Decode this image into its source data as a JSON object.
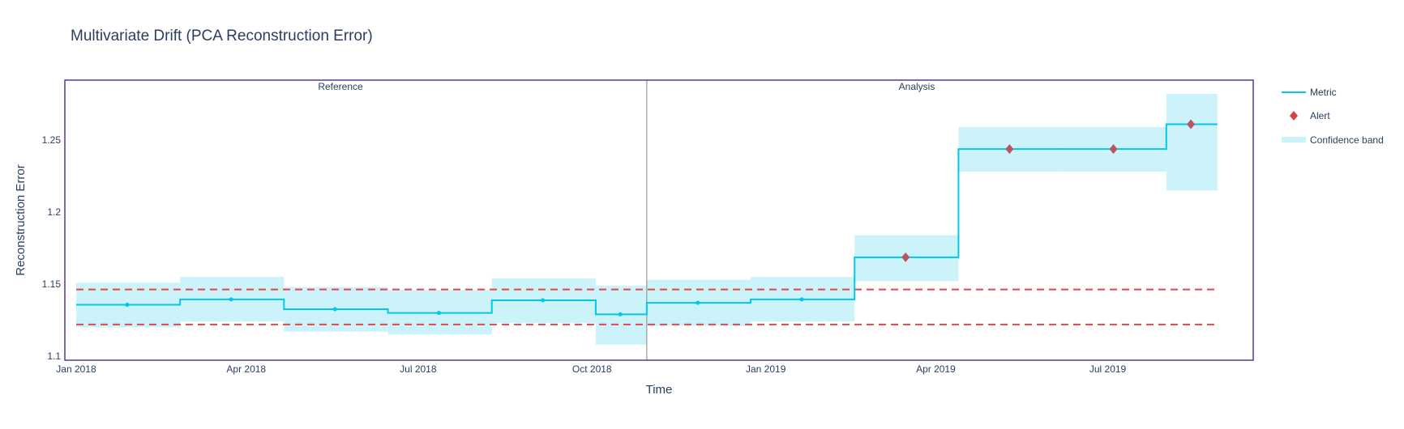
{
  "chart_data": {
    "type": "line",
    "title": "Multivariate Drift (PCA Reconstruction Error)",
    "xlabel": "Time",
    "ylabel": "Reconstruction Error",
    "xlim": [
      "2017-12-26",
      "2019-09-16"
    ],
    "ylim": [
      1.0972,
      1.2916
    ],
    "grid": false,
    "legend_placement": "right",
    "x_ticks": [
      {
        "date": "2018-01-01",
        "label": "Jan 2018"
      },
      {
        "date": "2018-04-01",
        "label": "Apr 2018"
      },
      {
        "date": "2018-07-01",
        "label": "Jul 2018"
      },
      {
        "date": "2018-10-01",
        "label": "Oct 2018"
      },
      {
        "date": "2019-01-01",
        "label": "Jan 2019"
      },
      {
        "date": "2019-04-01",
        "label": "Apr 2019"
      },
      {
        "date": "2019-07-01",
        "label": "Jul 2019"
      }
    ],
    "y_ticks": [
      {
        "value": 1.1,
        "label": "1.1"
      },
      {
        "value": 1.15,
        "label": "1.15"
      },
      {
        "value": 1.2,
        "label": "1.2"
      },
      {
        "value": 1.25,
        "label": "1.25"
      }
    ],
    "period_labels": {
      "reference": "Reference",
      "analysis": "Analysis"
    },
    "period_split": "2018-10-30",
    "thresholds": {
      "upper": 1.1463,
      "lower": 1.122
    },
    "legend": {
      "metric": "Metric",
      "alert": "Alert",
      "band": "Confidence band"
    },
    "colors": {
      "metric": "#00c8e5",
      "band": "#cdf3fa",
      "alert": "#d0474a",
      "alert_fill": "#b85560",
      "threshold": "#e0474c",
      "border": "#3d1a8e",
      "divider": "#a0a0a0"
    },
    "chunks": [
      {
        "start": "2018-01-01",
        "end": "2018-02-25",
        "value": 1.1357,
        "upper": 1.151,
        "lower": 1.12,
        "alert": false
      },
      {
        "start": "2018-02-25",
        "end": "2018-04-21",
        "value": 1.1394,
        "upper": 1.155,
        "lower": 1.124,
        "alert": false
      },
      {
        "start": "2018-04-21",
        "end": "2018-06-15",
        "value": 1.1326,
        "upper": 1.148,
        "lower": 1.117,
        "alert": false
      },
      {
        "start": "2018-06-15",
        "end": "2018-08-09",
        "value": 1.13,
        "upper": 1.146,
        "lower": 1.115,
        "alert": false
      },
      {
        "start": "2018-08-09",
        "end": "2018-10-03",
        "value": 1.1388,
        "upper": 1.154,
        "lower": 1.123,
        "alert": false
      },
      {
        "start": "2018-10-03",
        "end": "2018-10-30",
        "value": 1.129,
        "upper": 1.149,
        "lower": 1.108,
        "alert": false
      },
      {
        "start": "2018-10-30",
        "end": "2018-12-24",
        "value": 1.137,
        "upper": 1.153,
        "lower": 1.121,
        "alert": false
      },
      {
        "start": "2018-12-24",
        "end": "2019-02-17",
        "value": 1.1394,
        "upper": 1.155,
        "lower": 1.124,
        "alert": false
      },
      {
        "start": "2019-02-17",
        "end": "2019-04-13",
        "value": 1.1686,
        "upper": 1.184,
        "lower": 1.152,
        "alert": true
      },
      {
        "start": "2019-04-13",
        "end": "2019-06-07",
        "value": 1.2438,
        "upper": 1.259,
        "lower": 1.228,
        "alert": true
      },
      {
        "start": "2019-06-07",
        "end": "2019-08-01",
        "value": 1.2438,
        "upper": 1.259,
        "lower": 1.228,
        "alert": true
      },
      {
        "start": "2019-08-01",
        "end": "2019-08-28",
        "value": 1.261,
        "upper": 1.282,
        "lower": 1.215,
        "alert": true
      }
    ]
  }
}
